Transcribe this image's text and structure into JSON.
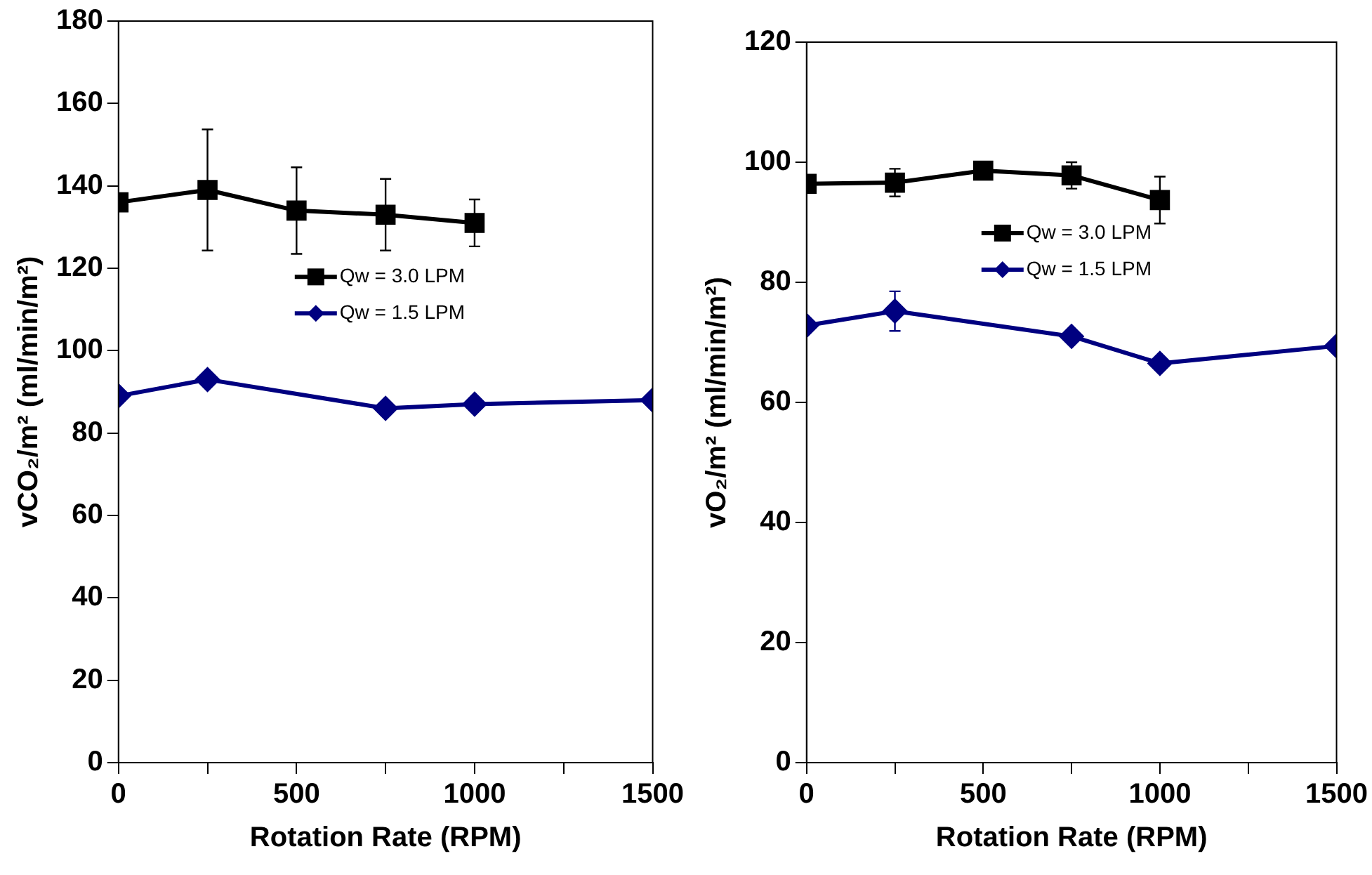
{
  "chart_data": [
    {
      "type": "line",
      "xlabel": "Rotation Rate (RPM)",
      "ylabel": "vCO₂/m² (ml/min/m²)",
      "xlim": [
        0,
        1500
      ],
      "xticks": [
        0,
        {
          "value": 250,
          "label": null
        },
        500,
        {
          "value": 750,
          "label": null
        },
        1000,
        {
          "value": 1250,
          "label": null
        },
        1500
      ],
      "ylim": [
        0,
        180
      ],
      "yticks": [
        0,
        20,
        40,
        60,
        80,
        100,
        120,
        140,
        160,
        180
      ],
      "grid": false,
      "legend": "top",
      "series": [
        {
          "name": "Qw = 3.0 LPM",
          "color": "#000000",
          "marker": "square",
          "x": [
            0,
            250,
            500,
            750,
            1000
          ],
          "values": [
            136,
            139,
            134,
            133,
            131
          ],
          "errors": [
            null,
            14.7,
            10.5,
            8.7,
            5.7
          ]
        },
        {
          "name": "Qw = 1.5 LPM",
          "color": "#000080",
          "marker": "diamond",
          "x": [
            0,
            250,
            750,
            1000,
            1500
          ],
          "values": [
            89,
            93,
            86,
            87,
            88
          ]
        }
      ]
    },
    {
      "type": "line",
      "xlabel": "Rotation Rate (RPM)",
      "ylabel": "vO₂/m² (ml/min/m²)",
      "xlim": [
        0,
        1500
      ],
      "xticks": [
        0,
        {
          "value": 250,
          "label": null
        },
        500,
        {
          "value": 750,
          "label": null
        },
        1000,
        {
          "value": 1250,
          "label": null
        },
        1500
      ],
      "ylim": [
        0,
        120
      ],
      "yticks": [
        0,
        20,
        40,
        60,
        80,
        100,
        120
      ],
      "grid": false,
      "legend": "top",
      "series": [
        {
          "name": "Qw = 3.0 LPM",
          "color": "#000000",
          "marker": "square",
          "x": [
            0,
            250,
            500,
            750,
            1000
          ],
          "values": [
            96.4,
            96.6,
            98.6,
            97.8,
            93.7
          ],
          "errors": [
            null,
            2.3,
            null,
            2.2,
            3.9
          ]
        },
        {
          "name": "Qw = 1.5 LPM",
          "color": "#000080",
          "marker": "diamond",
          "x": [
            0,
            250,
            750,
            1000,
            1500
          ],
          "values": [
            72.8,
            75.2,
            71,
            66.5,
            69.4
          ],
          "errors": [
            null,
            3.3,
            null,
            null,
            null
          ]
        }
      ]
    }
  ]
}
